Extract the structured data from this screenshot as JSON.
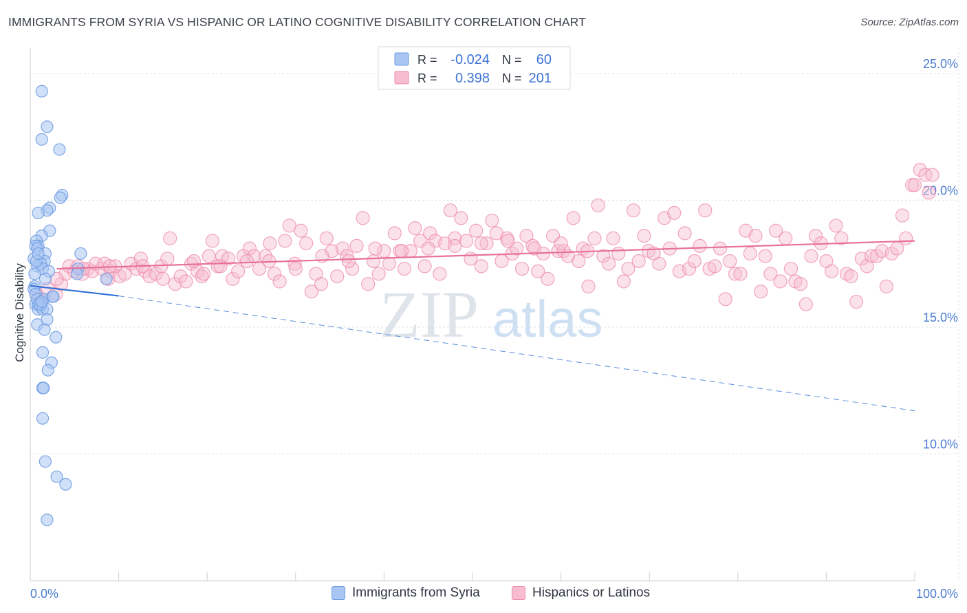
{
  "header": {
    "title": "IMMIGRANTS FROM SYRIA VS HISPANIC OR LATINO COGNITIVE DISABILITY CORRELATION CHART",
    "source": "Source: ZipAtlas.com"
  },
  "watermark": {
    "zip": "ZIP",
    "atlas": "atlas"
  },
  "stats_legend": [
    {
      "series": "Immigrants from Syria",
      "r_label": "R =",
      "r_value": "-0.024",
      "n_label": "N =",
      "n_value": "60",
      "color": "#a9c6f2",
      "stroke": "#6b9ae0"
    },
    {
      "series": "Hispanics or Latinos",
      "r_label": "R =",
      "r_value": "0.398",
      "n_label": "N =",
      "n_value": "201",
      "color": "#f7bcd0",
      "stroke": "#ec8aaa"
    }
  ],
  "chart_data": {
    "type": "scatter",
    "title": "IMMIGRANTS FROM SYRIA VS HISPANIC OR LATINO COGNITIVE DISABILITY CORRELATION CHART",
    "xlabel": "",
    "ylabel": "Cognitive Disability",
    "xlim": [
      0,
      100
    ],
    "ylim": [
      5.0,
      26.0
    ],
    "x_tick_labels": [
      "0.0%",
      "100.0%"
    ],
    "y_ticks": [
      10,
      15,
      20,
      25
    ],
    "y_tick_labels": [
      "10.0%",
      "15.0%",
      "20.0%",
      "25.0%"
    ],
    "grid": true,
    "legend_position": "bottom-center",
    "colors": {
      "syria": "#6b9ae0",
      "syria_fill": "#a9c6f2",
      "hispanic": "#ec8aaa",
      "hispanic_fill": "#f7bcd0",
      "syria_line": "#2f6fd6",
      "hispanic_line": "#e7709a",
      "axis_text": "#4a7bd0"
    },
    "series": [
      {
        "name": "Immigrants from Syria",
        "points": [
          [
            1.3,
            24.3
          ],
          [
            1.9,
            22.9
          ],
          [
            1.3,
            22.4
          ],
          [
            3.3,
            22.0
          ],
          [
            3.6,
            20.2
          ],
          [
            3.4,
            20.1
          ],
          [
            2.2,
            19.7
          ],
          [
            1.9,
            19.6
          ],
          [
            0.9,
            19.5
          ],
          [
            2.2,
            18.8
          ],
          [
            1.3,
            18.6
          ],
          [
            0.7,
            18.4
          ],
          [
            0.9,
            18.2
          ],
          [
            0.6,
            18.2
          ],
          [
            0.8,
            18.1
          ],
          [
            1.7,
            17.9
          ],
          [
            5.7,
            17.9
          ],
          [
            0.4,
            17.7
          ],
          [
            1.6,
            17.6
          ],
          [
            1.2,
            17.5
          ],
          [
            0.8,
            17.4
          ],
          [
            1.4,
            17.3
          ],
          [
            5.4,
            17.3
          ],
          [
            2.1,
            17.2
          ],
          [
            0.5,
            17.1
          ],
          [
            5.3,
            17.1
          ],
          [
            1.7,
            16.9
          ],
          [
            8.6,
            16.9
          ],
          [
            0.5,
            16.6
          ],
          [
            0.4,
            16.5
          ],
          [
            0.6,
            16.3
          ],
          [
            2.5,
            16.2
          ],
          [
            1.5,
            16.1
          ],
          [
            1.1,
            16.0
          ],
          [
            0.6,
            15.9
          ],
          [
            0.9,
            15.9
          ],
          [
            1.2,
            15.8
          ],
          [
            0.9,
            15.7
          ],
          [
            1.4,
            15.7
          ],
          [
            1.9,
            15.7
          ],
          [
            1.9,
            15.3
          ],
          [
            0.8,
            15.1
          ],
          [
            1.6,
            14.9
          ],
          [
            2.9,
            14.6
          ],
          [
            1.4,
            14.0
          ],
          [
            2.4,
            13.6
          ],
          [
            2.0,
            13.3
          ],
          [
            1.4,
            12.6
          ],
          [
            1.5,
            12.6
          ],
          [
            1.4,
            11.4
          ],
          [
            1.7,
            9.7
          ],
          [
            3.0,
            9.1
          ],
          [
            4.0,
            8.8
          ],
          [
            1.9,
            7.4
          ],
          [
            0.8,
            16.1
          ],
          [
            1.1,
            15.9
          ],
          [
            0.7,
            17.6
          ],
          [
            1.3,
            16.0
          ],
          [
            2.6,
            16.2
          ],
          [
            0.9,
            17.9
          ]
        ],
        "trendline": {
          "x": [
            0.0,
            10.0
          ],
          "y": [
            16.63,
            16.23
          ]
        },
        "trendline_extrapolated": {
          "x": [
            10.0,
            100.0
          ],
          "y": [
            16.23,
            11.7
          ]
        }
      },
      {
        "name": "Hispanics or Latinos",
        "points": [
          [
            0.7,
            16.3
          ],
          [
            1.2,
            16.1
          ],
          [
            2.0,
            16.5
          ],
          [
            2.9,
            16.3
          ],
          [
            3.5,
            16.7
          ],
          [
            4.0,
            17.1
          ],
          [
            4.4,
            17.4
          ],
          [
            5.0,
            17.2
          ],
          [
            5.4,
            17.4
          ],
          [
            5.9,
            17.1
          ],
          [
            6.5,
            17.3
          ],
          [
            7.0,
            17.2
          ],
          [
            7.4,
            17.5
          ],
          [
            8.1,
            17.3
          ],
          [
            8.4,
            17.5
          ],
          [
            8.8,
            16.9
          ],
          [
            9.1,
            17.2
          ],
          [
            9.6,
            17.4
          ],
          [
            10.1,
            17.0
          ],
          [
            10.7,
            17.1
          ],
          [
            11.4,
            17.5
          ],
          [
            12.0,
            17.3
          ],
          [
            12.5,
            17.7
          ],
          [
            13.0,
            17.2
          ],
          [
            13.5,
            17.0
          ],
          [
            14.2,
            17.1
          ],
          [
            14.8,
            17.4
          ],
          [
            15.5,
            17.7
          ],
          [
            15.8,
            18.5
          ],
          [
            16.4,
            16.7
          ],
          [
            17.0,
            17.0
          ],
          [
            17.6,
            16.8
          ],
          [
            18.2,
            17.5
          ],
          [
            18.9,
            17.2
          ],
          [
            19.4,
            17.0
          ],
          [
            19.6,
            17.1
          ],
          [
            20.2,
            17.8
          ],
          [
            20.6,
            18.4
          ],
          [
            21.2,
            17.4
          ],
          [
            21.7,
            17.8
          ],
          [
            22.4,
            17.7
          ],
          [
            22.9,
            16.9
          ],
          [
            23.5,
            17.2
          ],
          [
            24.1,
            17.8
          ],
          [
            24.8,
            18.1
          ],
          [
            25.3,
            17.8
          ],
          [
            25.9,
            17.3
          ],
          [
            26.6,
            17.8
          ],
          [
            27.1,
            18.3
          ],
          [
            27.6,
            17.1
          ],
          [
            28.2,
            16.8
          ],
          [
            28.8,
            18.4
          ],
          [
            29.3,
            19.0
          ],
          [
            29.9,
            17.5
          ],
          [
            30.6,
            18.8
          ],
          [
            31.2,
            18.3
          ],
          [
            31.8,
            16.4
          ],
          [
            32.3,
            17.1
          ],
          [
            32.9,
            16.7
          ],
          [
            33.5,
            18.5
          ],
          [
            34.1,
            18.0
          ],
          [
            34.7,
            17.0
          ],
          [
            35.3,
            18.1
          ],
          [
            35.8,
            17.8
          ],
          [
            36.4,
            17.3
          ],
          [
            36.9,
            18.2
          ],
          [
            37.6,
            19.3
          ],
          [
            38.2,
            16.7
          ],
          [
            38.8,
            17.6
          ],
          [
            39.4,
            17.1
          ],
          [
            40.0,
            18.0
          ],
          [
            40.6,
            17.5
          ],
          [
            41.2,
            18.7
          ],
          [
            41.8,
            18.0
          ],
          [
            42.3,
            17.3
          ],
          [
            43.0,
            18.0
          ],
          [
            43.5,
            18.9
          ],
          [
            44.1,
            18.4
          ],
          [
            44.6,
            17.4
          ],
          [
            45.2,
            18.7
          ],
          [
            45.8,
            18.4
          ],
          [
            46.3,
            17.1
          ],
          [
            46.9,
            18.3
          ],
          [
            47.5,
            19.6
          ],
          [
            48.0,
            18.5
          ],
          [
            48.7,
            19.3
          ],
          [
            49.3,
            18.4
          ],
          [
            49.8,
            17.7
          ],
          [
            50.4,
            18.8
          ],
          [
            51.0,
            17.4
          ],
          [
            51.6,
            18.3
          ],
          [
            52.2,
            19.2
          ],
          [
            52.7,
            18.7
          ],
          [
            53.3,
            17.6
          ],
          [
            53.9,
            18.5
          ],
          [
            54.5,
            17.9
          ],
          [
            55.0,
            18.1
          ],
          [
            55.6,
            17.3
          ],
          [
            56.1,
            18.6
          ],
          [
            56.8,
            18.2
          ],
          [
            57.4,
            17.2
          ],
          [
            58.0,
            17.9
          ],
          [
            58.5,
            16.9
          ],
          [
            59.1,
            18.6
          ],
          [
            59.7,
            18.0
          ],
          [
            60.3,
            18.0
          ],
          [
            60.8,
            17.8
          ],
          [
            61.4,
            19.3
          ],
          [
            62.0,
            17.6
          ],
          [
            62.5,
            18.1
          ],
          [
            63.1,
            16.6
          ],
          [
            63.8,
            18.5
          ],
          [
            64.2,
            19.8
          ],
          [
            64.8,
            17.8
          ],
          [
            65.4,
            17.5
          ],
          [
            65.9,
            18.5
          ],
          [
            66.5,
            17.9
          ],
          [
            67.1,
            16.8
          ],
          [
            67.6,
            17.3
          ],
          [
            68.2,
            19.6
          ],
          [
            68.8,
            17.6
          ],
          [
            69.4,
            18.6
          ],
          [
            69.9,
            18.0
          ],
          [
            70.5,
            17.9
          ],
          [
            71.1,
            17.5
          ],
          [
            71.7,
            19.3
          ],
          [
            72.3,
            18.1
          ],
          [
            72.8,
            19.5
          ],
          [
            73.4,
            17.2
          ],
          [
            74.0,
            18.7
          ],
          [
            74.5,
            17.3
          ],
          [
            75.1,
            17.6
          ],
          [
            75.7,
            18.2
          ],
          [
            76.3,
            19.6
          ],
          [
            76.8,
            17.3
          ],
          [
            77.4,
            17.4
          ],
          [
            78.0,
            18.1
          ],
          [
            78.6,
            16.1
          ],
          [
            79.1,
            17.6
          ],
          [
            79.7,
            17.1
          ],
          [
            80.3,
            17.1
          ],
          [
            80.9,
            18.8
          ],
          [
            81.4,
            17.9
          ],
          [
            82.0,
            18.6
          ],
          [
            82.6,
            16.4
          ],
          [
            83.1,
            17.8
          ],
          [
            83.7,
            17.1
          ],
          [
            84.3,
            18.8
          ],
          [
            84.8,
            16.8
          ],
          [
            85.4,
            18.5
          ],
          [
            86.0,
            17.3
          ],
          [
            86.5,
            16.8
          ],
          [
            87.1,
            16.7
          ],
          [
            87.7,
            15.9
          ],
          [
            88.3,
            17.8
          ],
          [
            88.8,
            18.6
          ],
          [
            89.4,
            18.3
          ],
          [
            90.0,
            17.6
          ],
          [
            90.6,
            17.2
          ],
          [
            91.1,
            19.0
          ],
          [
            91.7,
            18.5
          ],
          [
            92.3,
            17.1
          ],
          [
            92.8,
            17.0
          ],
          [
            93.4,
            16.0
          ],
          [
            94.0,
            17.7
          ],
          [
            94.6,
            17.4
          ],
          [
            95.1,
            17.8
          ],
          [
            95.7,
            17.8
          ],
          [
            96.3,
            18.0
          ],
          [
            96.8,
            16.6
          ],
          [
            97.4,
            17.9
          ],
          [
            98.0,
            18.1
          ],
          [
            98.6,
            19.4
          ],
          [
            99.0,
            18.5
          ],
          [
            99.7,
            20.6
          ],
          [
            100.0,
            20.6
          ],
          [
            100.6,
            21.2
          ],
          [
            101.2,
            21.0
          ],
          [
            101.6,
            20.3
          ],
          [
            102.0,
            21.0
          ],
          [
            3.0,
            16.9
          ],
          [
            6.0,
            17.3
          ],
          [
            9.0,
            17.4
          ],
          [
            12.7,
            17.4
          ],
          [
            15.0,
            16.9
          ],
          [
            18.5,
            17.6
          ],
          [
            21.5,
            17.4
          ],
          [
            24.5,
            17.6
          ],
          [
            27.0,
            17.6
          ],
          [
            30.0,
            17.3
          ],
          [
            33.0,
            17.8
          ],
          [
            36.0,
            17.6
          ],
          [
            39.0,
            18.1
          ],
          [
            42.0,
            18.0
          ],
          [
            45.0,
            18.1
          ],
          [
            48.0,
            18.2
          ],
          [
            51.0,
            18.3
          ],
          [
            54.0,
            18.4
          ],
          [
            57.0,
            18.1
          ],
          [
            60.0,
            18.3
          ],
          [
            63.0,
            18.0
          ]
        ],
        "trendline": {
          "x": [
            3.0,
            100.0
          ],
          "y": [
            17.3,
            18.4
          ]
        }
      }
    ]
  },
  "bottom_legend": [
    {
      "label": "Immigrants from Syria",
      "fill": "#a9c6f2",
      "stroke": "#6b9ae0"
    },
    {
      "label": "Hispanics or Latinos",
      "fill": "#f7bcd0",
      "stroke": "#ec8aaa"
    }
  ]
}
